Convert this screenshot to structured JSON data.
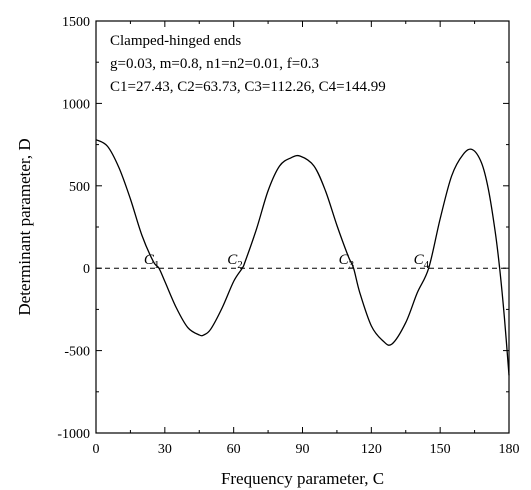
{
  "chart_data": {
    "type": "line",
    "title": "",
    "xlabel": "Frequency parameter, C",
    "ylabel": "Determinant parameter, D",
    "xlim": [
      0,
      180
    ],
    "ylim": [
      -1000,
      1500
    ],
    "x_ticks": [
      "0",
      "30",
      "60",
      "90",
      "120",
      "150",
      "180"
    ],
    "y_ticks": [
      "-1000",
      "-500",
      "0",
      "500",
      "1000",
      "1500"
    ],
    "grid": false,
    "annotations": [
      "Clamped-hinged ends",
      "g=0.03, m=0.8, n1=n2=0.01, f=0.3",
      "C1=27.43, C2=63.73, C3=112.26, C4=144.99"
    ],
    "root_labels": [
      "C1",
      "C2",
      "C3",
      "C4"
    ],
    "roots": [
      27.43,
      63.73,
      112.26,
      144.99
    ],
    "series": [
      {
        "style": "solid",
        "x": [
          0,
          5,
          10,
          15,
          20,
          25,
          27.43,
          30,
          35,
          40,
          45,
          47,
          50,
          55,
          60,
          63.73,
          65,
          70,
          75,
          80,
          85,
          89,
          95,
          100,
          105,
          110,
          112.26,
          115,
          120,
          125,
          129,
          135,
          140,
          144.99,
          150,
          155,
          160,
          164,
          168,
          171,
          174,
          176,
          178,
          180
        ],
        "y": [
          780,
          740,
          610,
          420,
          200,
          40,
          0,
          -80,
          -240,
          -360,
          -405,
          -405,
          -370,
          -240,
          -80,
          0,
          40,
          240,
          470,
          620,
          670,
          680,
          620,
          470,
          260,
          70,
          0,
          -150,
          -350,
          -440,
          -460,
          -330,
          -150,
          0,
          300,
          560,
          690,
          720,
          640,
          480,
          220,
          -10,
          -300,
          -650
        ]
      },
      {
        "style": "dashed",
        "x": [
          0,
          180
        ],
        "y": [
          0,
          0
        ]
      }
    ]
  }
}
